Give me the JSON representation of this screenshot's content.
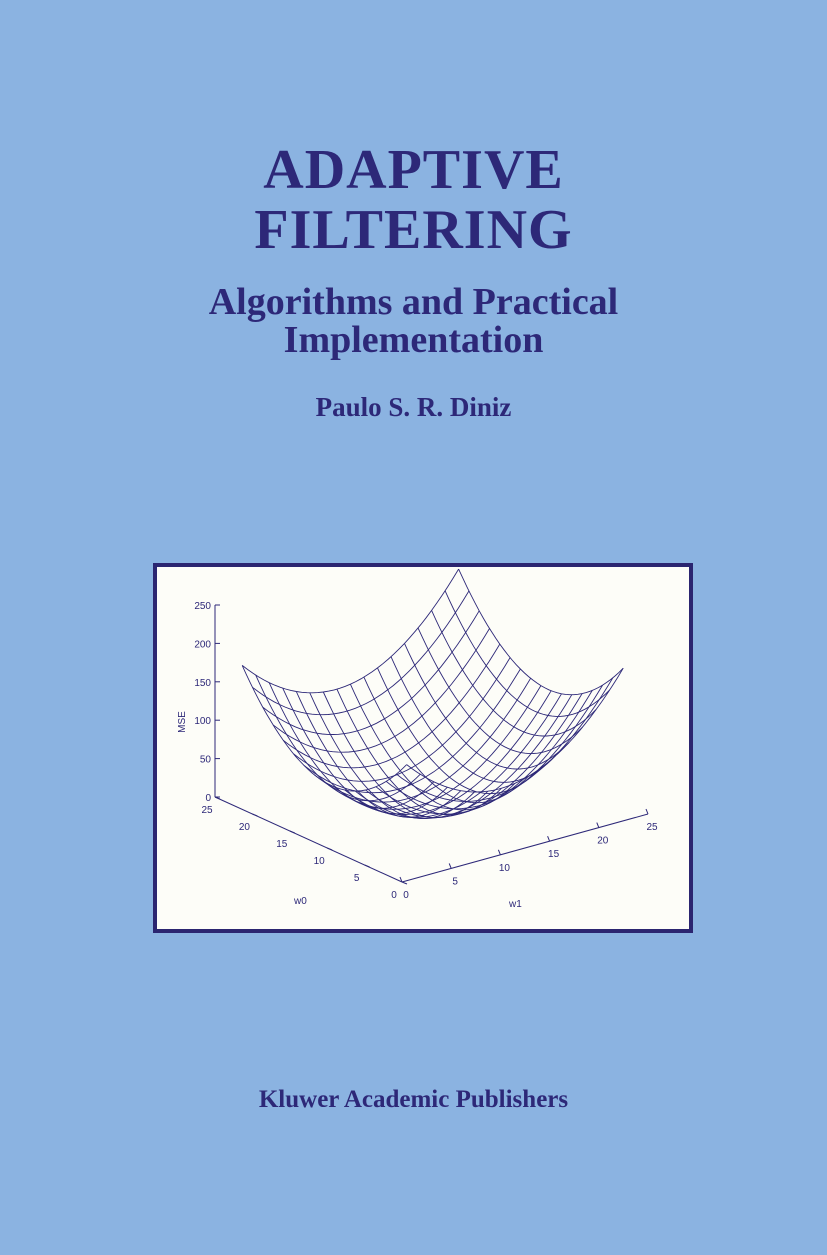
{
  "cover": {
    "title_line1": "ADAPTIVE",
    "title_line2": "FILTERING",
    "subtitle_line1": "Algorithms and Practical",
    "subtitle_line2": "Implementation",
    "author": "Paulo S. R. Diniz",
    "publisher": "Kluwer Academic Publishers"
  },
  "colors": {
    "background": "#8bb3e1",
    "text": "#2d2878",
    "frame": "#2b2570",
    "plot_background": "#fdfdf8"
  },
  "chart_data": {
    "type": "surface",
    "title": "",
    "zlabel": "MSE",
    "xlabel": "w0",
    "ylabel": "w1",
    "zlim": [
      0,
      250
    ],
    "xlim": [
      0,
      25
    ],
    "ylim": [
      0,
      25
    ],
    "z_ticks": [
      "0",
      "50",
      "100",
      "150",
      "200",
      "250"
    ],
    "x_ticks": [
      "0",
      "5",
      "10",
      "15",
      "20",
      "25"
    ],
    "y_ticks": [
      "0",
      "5",
      "10",
      "15",
      "20",
      "25"
    ],
    "grid": false
  }
}
